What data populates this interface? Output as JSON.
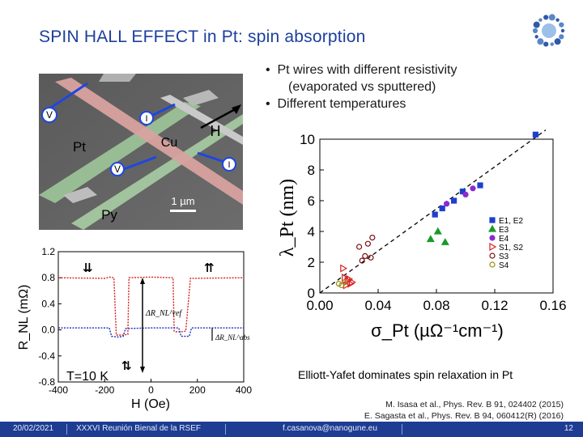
{
  "slide": {
    "title": "SPIN HALL EFFECT in Pt: spin absorption",
    "bullets": [
      "Pt wires with different resistivity",
      "(evaporated vs sputtered)",
      "Different temperatures"
    ],
    "caption": "Elliott-Yafet dominates spin relaxation in Pt",
    "references": [
      "M. Isasa et al., Phys. Rev. B 91, 024402 (2015)",
      "E. Sagasta et al., Phys. Rev. B 94, 060412(R) (2016)"
    ]
  },
  "device_image": {
    "labels": {
      "v_top": "V",
      "i_top": "I",
      "h_field": "H",
      "pt": "Pt",
      "cu": "Cu",
      "v_bottom": "V",
      "i_right": "I",
      "py": "Py",
      "scale_bar": "1 µm"
    }
  },
  "footer": {
    "date": "20/02/2021",
    "event": "XXXVI Reunión Bienal de la RSEF",
    "email": "f.casanova@nanogune.eu",
    "page": "12"
  },
  "colors": {
    "title": "#1c3f9e",
    "footer_bg": "#1d3c92",
    "red_trace": "#d42020",
    "blue_trace": "#1a2fc0",
    "e1e2": "#1f3fd0",
    "e3": "#1a9a2a",
    "e4": "#8a2ad0",
    "s1s2": "#d92020",
    "s3": "#7a1010",
    "s4": "#9a8a10"
  },
  "chart_data": [
    {
      "type": "line",
      "title": "",
      "xlabel": "H (Oe)",
      "ylabel": "R_NL (mΩ)",
      "xlim": [
        -400,
        400
      ],
      "ylim": [
        -0.8,
        1.2
      ],
      "xticks": [
        "-400",
        "-200",
        "0",
        "200",
        "400"
      ],
      "yticks": [
        "1.2",
        "0.8",
        "0.4",
        "0.0",
        "-0.4",
        "-0.8"
      ],
      "annotation": "T=10 K",
      "series": [
        {
          "color": "red",
          "x": [
            -400,
            -200,
            -180,
            -160,
            -150,
            -120,
            -100,
            -95,
            0,
            95,
            100,
            110,
            130,
            150,
            170,
            400
          ],
          "y": [
            0.8,
            0.79,
            0.81,
            0.8,
            -0.08,
            -0.08,
            -0.07,
            0.8,
            0.81,
            0.8,
            -0.02,
            -0.03,
            -0.03,
            -0.02,
            0.79,
            0.8
          ]
        },
        {
          "color": "blue",
          "x": [
            -400,
            -180,
            -170,
            -140,
            -120,
            -110,
            0,
            120,
            130,
            165,
            175,
            400
          ],
          "y": [
            0.03,
            0.03,
            -0.1,
            -0.11,
            -0.1,
            0.02,
            0.03,
            0.03,
            -0.1,
            -0.1,
            0.03,
            0.03
          ]
        }
      ],
      "inline_labels": [
        "ΔR_NL^ref",
        "ΔR_NL^abs"
      ]
    },
    {
      "type": "scatter",
      "title": "",
      "xlabel": "σ_Pt (µΩ⁻¹cm⁻¹)",
      "ylabel": "λ_Pt (nm)",
      "xlim": [
        0.0,
        0.16
      ],
      "ylim": [
        0,
        10
      ],
      "xticks": [
        "0.00",
        "0.04",
        "0.08",
        "0.12",
        "0.16"
      ],
      "yticks": [
        "0",
        "2",
        "4",
        "6",
        "8",
        "10"
      ],
      "legend_position": "right",
      "series": [
        {
          "name": "E1, E2",
          "x": [
            0.079,
            0.084,
            0.092,
            0.098,
            0.11,
            0.148
          ],
          "y": [
            5.1,
            5.5,
            6.0,
            6.6,
            7.0,
            10.3
          ]
        },
        {
          "name": "E3",
          "x": [
            0.076,
            0.081,
            0.086
          ],
          "y": [
            3.5,
            4.0,
            3.3
          ]
        },
        {
          "name": "E4",
          "x": [
            0.087,
            0.1,
            0.105
          ],
          "y": [
            5.8,
            6.4,
            6.8
          ]
        },
        {
          "name": "S1, S2",
          "x": [
            0.016,
            0.017,
            0.018,
            0.019,
            0.02,
            0.021,
            0.022
          ],
          "y": [
            1.6,
            1.0,
            0.5,
            0.8,
            0.9,
            0.6,
            0.7
          ]
        },
        {
          "name": "S3",
          "x": [
            0.027,
            0.029,
            0.031,
            0.033,
            0.035,
            0.036
          ],
          "y": [
            3.0,
            2.1,
            2.4,
            3.2,
            2.3,
            3.6
          ]
        },
        {
          "name": "S4",
          "x": [
            0.013,
            0.015,
            0.017
          ],
          "y": [
            0.6,
            0.5,
            0.7
          ]
        }
      ],
      "fit_line": {
        "style": "dashed",
        "x": [
          0.0,
          0.155
        ],
        "y": [
          0.0,
          10.6
        ]
      }
    }
  ]
}
